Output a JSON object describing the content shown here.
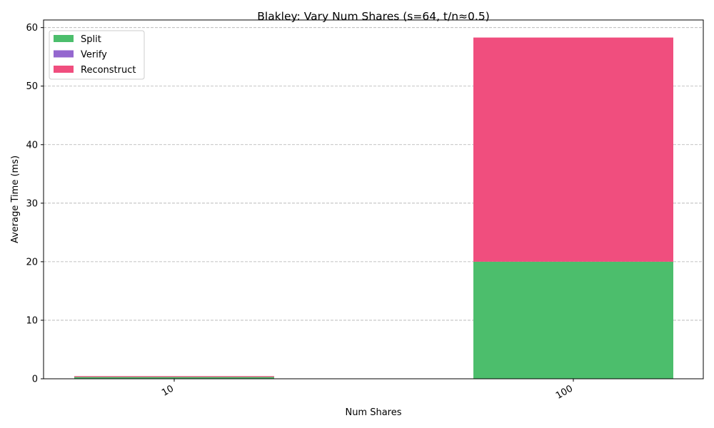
{
  "chart_data": {
    "type": "bar",
    "stacked": true,
    "title": "Blakley: Vary Num Shares (s=64, t/n≈0.5)",
    "xlabel": "Num Shares",
    "ylabel": "Average Time (ms)",
    "categories": [
      "10",
      "100"
    ],
    "series": [
      {
        "name": "Split",
        "color": "#4cbe6c",
        "values": [
          0.3,
          20.0
        ]
      },
      {
        "name": "Verify",
        "color": "#9467cf",
        "values": [
          0.0,
          0.0
        ]
      },
      {
        "name": "Reconstruct",
        "color": "#f04e7e",
        "values": [
          0.15,
          38.3
        ]
      }
    ],
    "ylim": [
      0,
      61.3
    ],
    "yticks": [
      0,
      10,
      20,
      30,
      40,
      50,
      60
    ],
    "grid": {
      "y": true,
      "x": false,
      "style": "dashed"
    },
    "legend_position": "top-left",
    "xtick_rotation": -30
  }
}
